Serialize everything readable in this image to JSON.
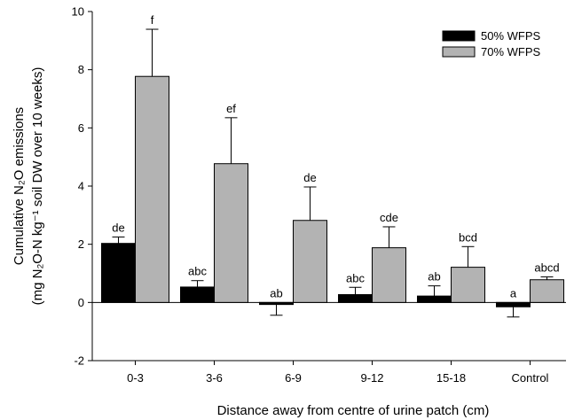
{
  "chart_data": {
    "type": "bar",
    "categories": [
      "0-3",
      "3-6",
      "6-9",
      "9-12",
      "15-18",
      "Control"
    ],
    "series": [
      {
        "name": "50% WFPS",
        "color": "#000000",
        "values": [
          2.03,
          0.53,
          -0.07,
          0.27,
          0.22,
          -0.15
        ],
        "errors": [
          0.22,
          0.22,
          0.37,
          0.25,
          0.35,
          0.35
        ],
        "error_direction": [
          "up",
          "up",
          "down",
          "up",
          "up",
          "down"
        ],
        "labels": [
          "de",
          "abc",
          "ab",
          "abc",
          "ab",
          "a"
        ]
      },
      {
        "name": "70% WFPS",
        "color": "#b3b3b3",
        "values": [
          7.77,
          4.77,
          2.82,
          1.88,
          1.21,
          0.78
        ],
        "errors": [
          1.62,
          1.58,
          1.15,
          0.72,
          0.71,
          0.1
        ],
        "error_direction": [
          "up",
          "up",
          "up",
          "up",
          "up",
          "up"
        ],
        "labels": [
          "f",
          "ef",
          "de",
          "cde",
          "bcd",
          "abcd"
        ]
      }
    ],
    "ylim": [
      -2,
      10
    ],
    "yticks": [
      -2,
      0,
      2,
      4,
      6,
      8,
      10
    ],
    "xlabel": "Distance away from centre of urine patch (cm)",
    "ylabel_line1": "Cumulative N₂O emissions",
    "ylabel_line2": "(mg N₂O-N kg⁻¹ soil DW over 10 weeks)",
    "legend_position": "top-right",
    "grid": false
  }
}
